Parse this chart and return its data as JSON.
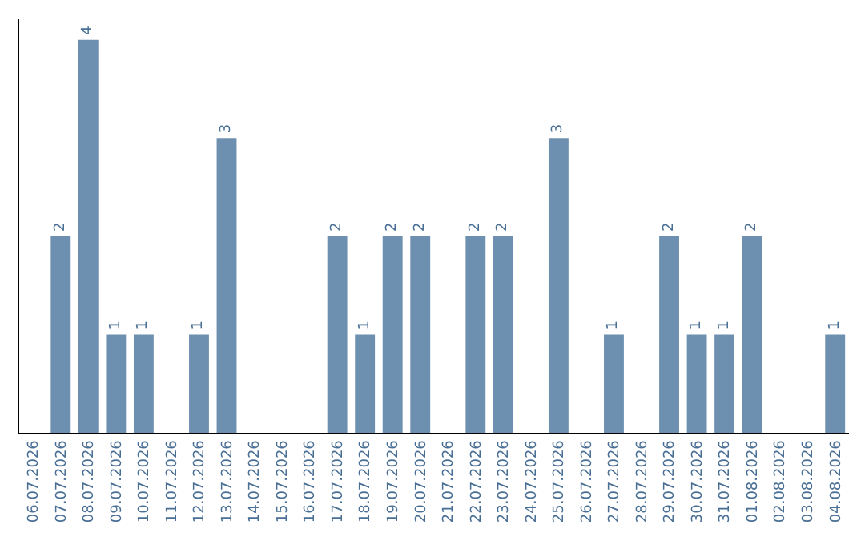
{
  "chart_data": {
    "type": "bar",
    "categories": [
      "06.07.2026",
      "07.07.2026",
      "08.07.2026",
      "09.07.2026",
      "10.07.2026",
      "11.07.2026",
      "12.07.2026",
      "13.07.2026",
      "14.07.2026",
      "15.07.2026",
      "16.07.2026",
      "17.07.2026",
      "18.07.2026",
      "19.07.2026",
      "20.07.2026",
      "21.07.2026",
      "22.07.2026",
      "23.07.2026",
      "24.07.2026",
      "25.07.2026",
      "26.07.2026",
      "27.07.2026",
      "28.07.2026",
      "29.07.2026",
      "30.07.2026",
      "31.07.2026",
      "01.08.2026",
      "02.08.2026",
      "03.08.2026",
      "04.08.2026"
    ],
    "values": [
      0,
      2,
      4,
      1,
      1,
      0,
      1,
      3,
      0,
      0,
      0,
      2,
      1,
      2,
      2,
      0,
      2,
      2,
      0,
      3,
      0,
      1,
      0,
      2,
      1,
      1,
      2,
      0,
      0,
      1
    ],
    "value_labels": [
      null,
      "2",
      "4",
      "1",
      "1",
      null,
      "1",
      "3",
      null,
      null,
      null,
      "2",
      "1",
      "2",
      "2",
      null,
      "2",
      "2",
      null,
      "3",
      null,
      "1",
      null,
      "2",
      "1",
      "1",
      "2",
      null,
      null,
      "1"
    ],
    "color": "#6d8fb0",
    "tick_labels": "x",
    "legend": false
  }
}
